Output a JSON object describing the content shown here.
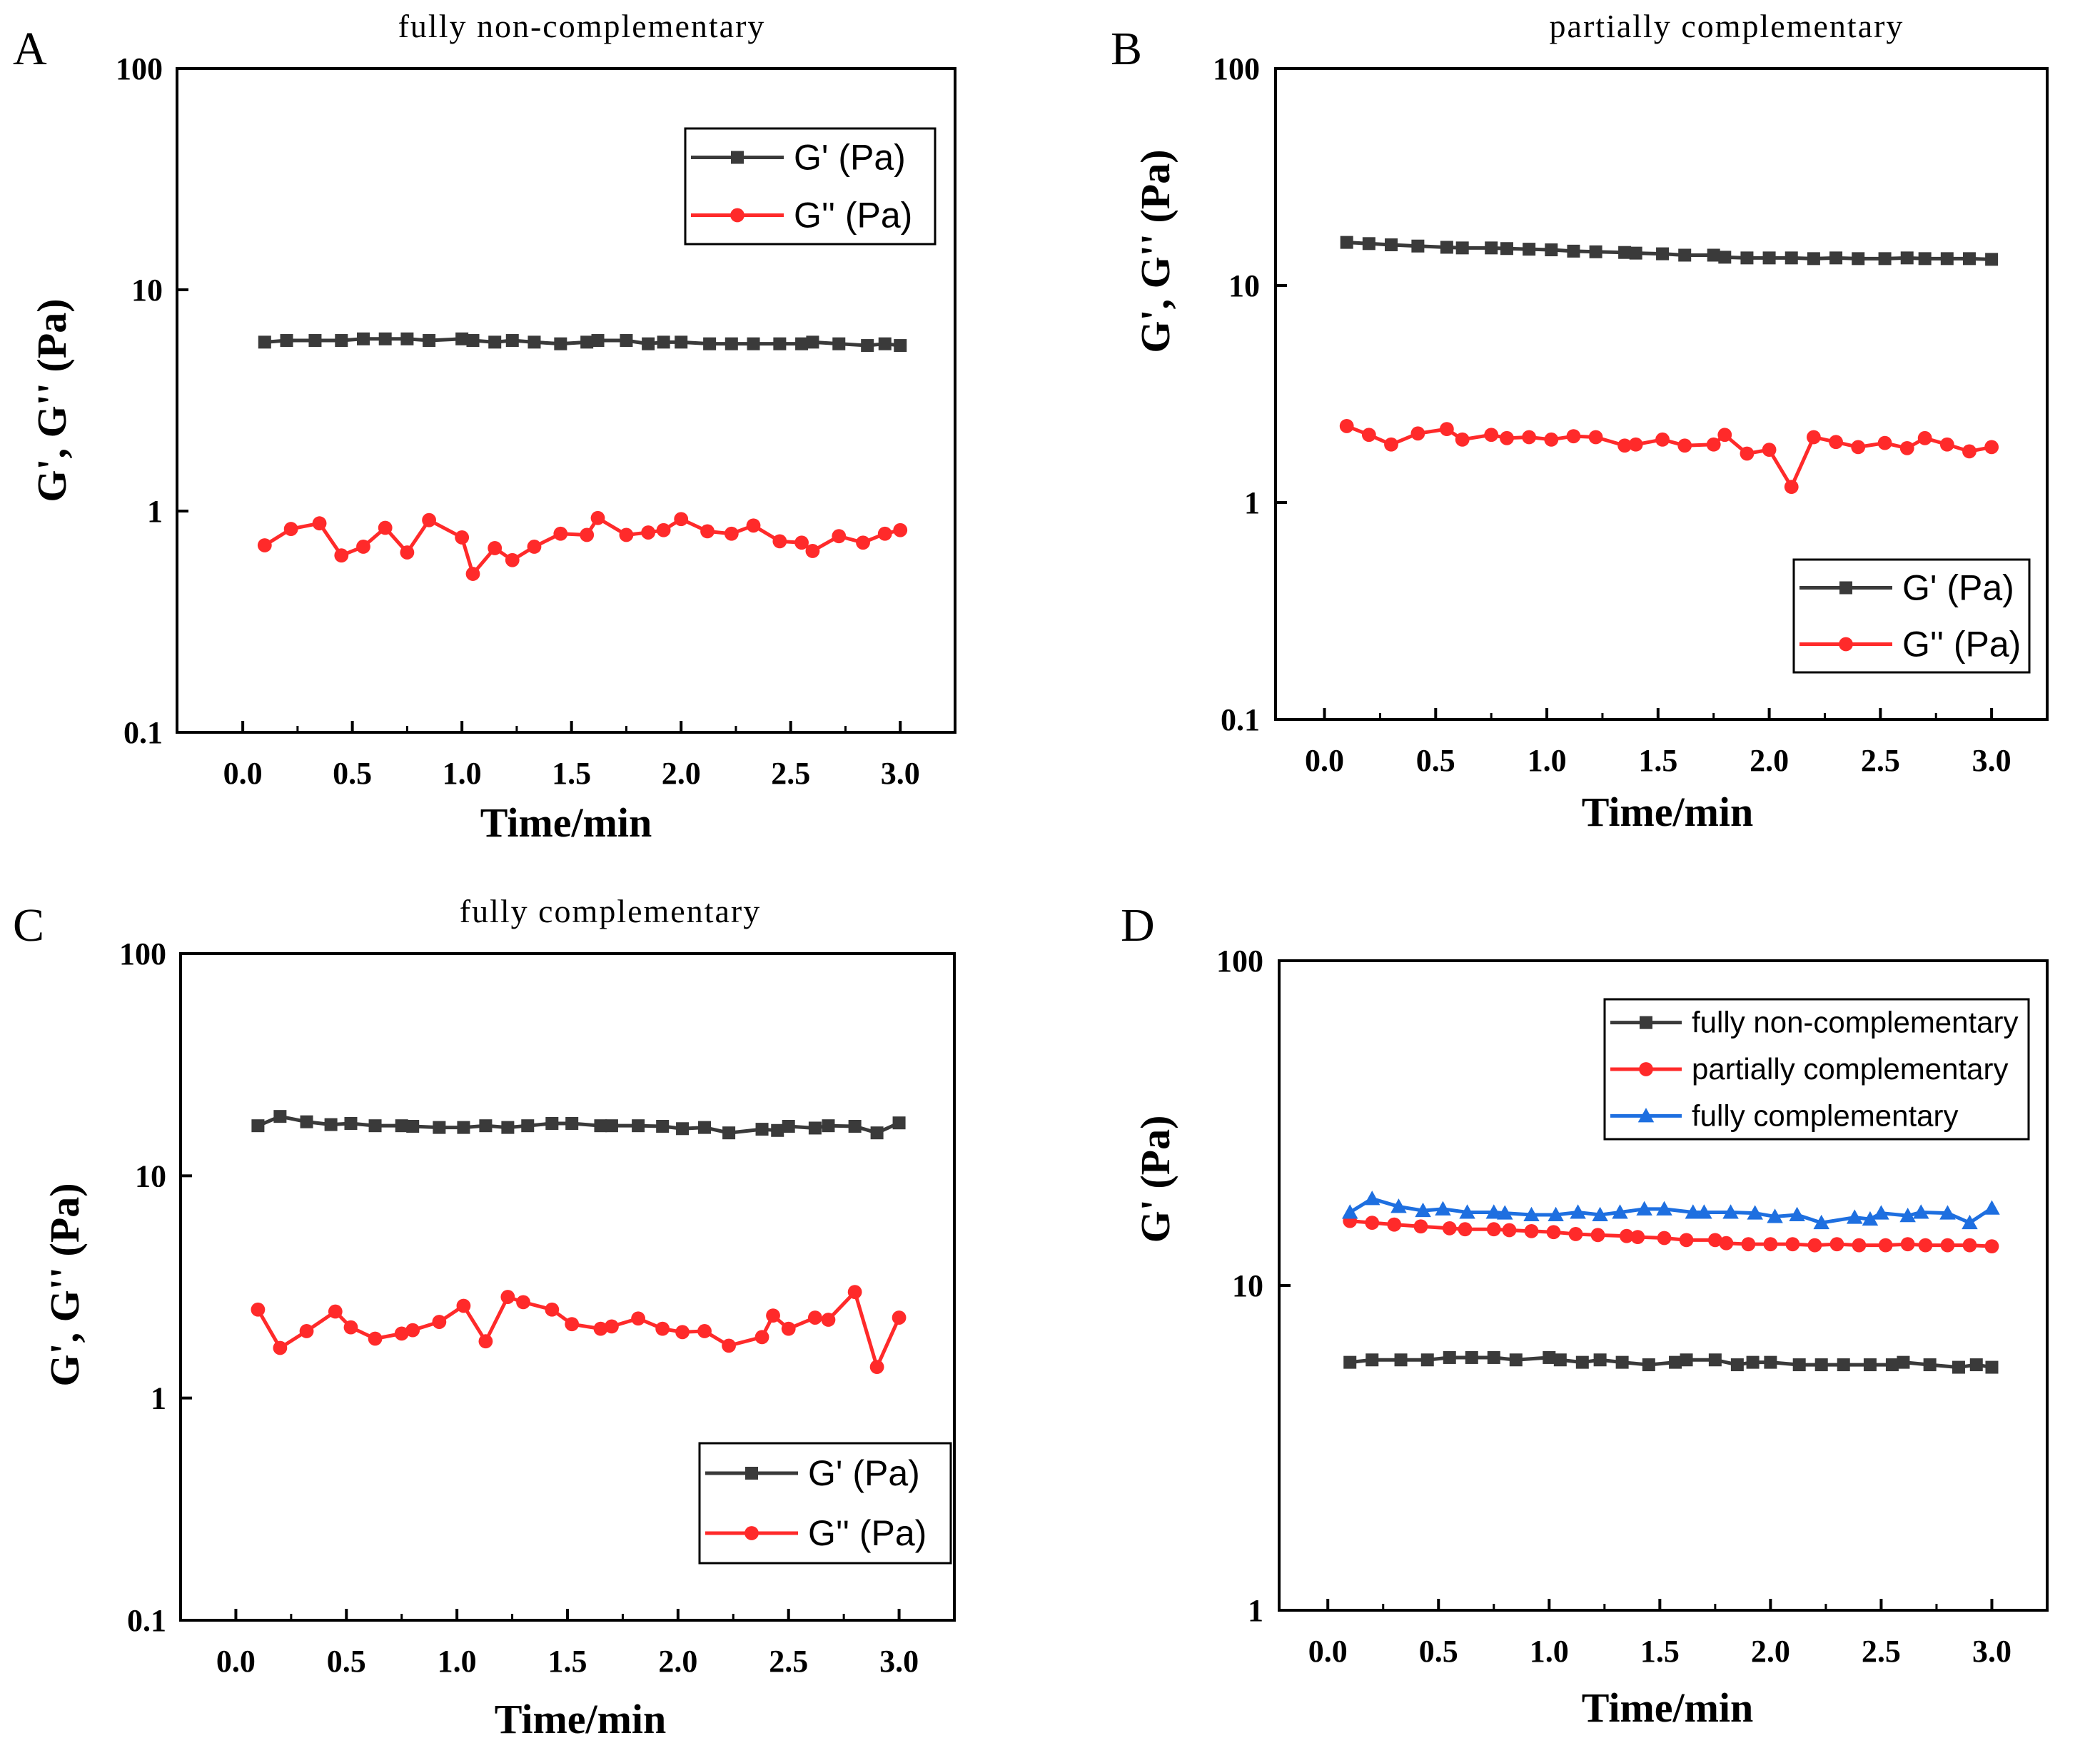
{
  "colors": {
    "g_prime": "#3a3a3a",
    "g_double": "#ff2a2a",
    "blue": "#1e6fe0",
    "axis": "#000000"
  },
  "chart_data": [
    {
      "type": "line",
      "panel": "A",
      "title": "fully non-complementary",
      "xlabel": "Time/min",
      "ylabel": "G', G'' (Pa)",
      "xlim": [
        -0.3,
        3.25
      ],
      "ylim": [
        0.1,
        100
      ],
      "yscale": "log",
      "xticks": [
        "0.0",
        "0.5",
        "1.0",
        "1.5",
        "2.0",
        "2.5",
        "3.0"
      ],
      "xtick_values": [
        0,
        0.5,
        1,
        1.5,
        2,
        2.5,
        3
      ],
      "yticks": [
        "0.1",
        "1",
        "10",
        "100"
      ],
      "ytick_values": [
        0.1,
        1,
        10,
        100
      ],
      "legend_position": "top-right",
      "series": [
        {
          "name": "G' (Pa)",
          "marker": "square",
          "color": "#3a3a3a",
          "x": [
            0.1,
            0.2,
            0.33,
            0.45,
            0.55,
            0.65,
            0.75,
            0.85,
            1.0,
            1.05,
            1.15,
            1.23,
            1.33,
            1.45,
            1.57,
            1.62,
            1.75,
            1.85,
            1.92,
            2.0,
            2.13,
            2.23,
            2.33,
            2.45,
            2.55,
            2.6,
            2.72,
            2.85,
            2.93,
            3.0
          ],
          "values": [
            5.8,
            5.9,
            5.9,
            5.9,
            6.0,
            6.0,
            6.0,
            5.9,
            6.0,
            5.9,
            5.8,
            5.9,
            5.8,
            5.7,
            5.8,
            5.9,
            5.9,
            5.7,
            5.8,
            5.8,
            5.7,
            5.7,
            5.7,
            5.7,
            5.7,
            5.8,
            5.7,
            5.6,
            5.7,
            5.6
          ]
        },
        {
          "name": "G'' (Pa)",
          "marker": "circle",
          "color": "#ff2a2a",
          "x": [
            0.1,
            0.22,
            0.35,
            0.45,
            0.55,
            0.65,
            0.75,
            0.85,
            1.0,
            1.05,
            1.15,
            1.23,
            1.33,
            1.45,
            1.57,
            1.62,
            1.75,
            1.85,
            1.92,
            2.0,
            2.12,
            2.23,
            2.33,
            2.45,
            2.55,
            2.6,
            2.72,
            2.83,
            2.93,
            3.0
          ],
          "values": [
            0.7,
            0.83,
            0.88,
            0.63,
            0.69,
            0.84,
            0.65,
            0.91,
            0.76,
            0.52,
            0.68,
            0.6,
            0.69,
            0.79,
            0.78,
            0.93,
            0.78,
            0.8,
            0.82,
            0.92,
            0.81,
            0.79,
            0.86,
            0.73,
            0.72,
            0.66,
            0.77,
            0.72,
            0.79,
            0.82
          ]
        }
      ]
    },
    {
      "type": "line",
      "panel": "B",
      "title": "partially complementary",
      "xlabel": "Time/min",
      "ylabel": "G', G'' (Pa)",
      "xlim": [
        -0.22,
        3.25
      ],
      "ylim": [
        0.1,
        100
      ],
      "yscale": "log",
      "xticks": [
        "0.0",
        "0.5",
        "1.0",
        "1.5",
        "2.0",
        "2.5",
        "3.0"
      ],
      "xtick_values": [
        0,
        0.5,
        1,
        1.5,
        2,
        2.5,
        3
      ],
      "yticks": [
        "0.1",
        "1",
        "10",
        "100"
      ],
      "ytick_values": [
        0.1,
        1,
        10,
        100
      ],
      "legend_position": "bottom-right",
      "series": [
        {
          "name": "G' (Pa)",
          "marker": "square",
          "color": "#3a3a3a",
          "x": [
            0.1,
            0.2,
            0.3,
            0.42,
            0.55,
            0.62,
            0.75,
            0.82,
            0.92,
            1.02,
            1.12,
            1.22,
            1.35,
            1.4,
            1.52,
            1.62,
            1.75,
            1.8,
            1.9,
            2.0,
            2.1,
            2.2,
            2.3,
            2.4,
            2.52,
            2.62,
            2.7,
            2.8,
            2.9,
            3.0
          ],
          "values": [
            15.8,
            15.6,
            15.4,
            15.2,
            15.0,
            14.9,
            14.9,
            14.8,
            14.7,
            14.6,
            14.4,
            14.3,
            14.2,
            14.1,
            14.0,
            13.8,
            13.8,
            13.5,
            13.4,
            13.4,
            13.4,
            13.3,
            13.4,
            13.3,
            13.3,
            13.4,
            13.3,
            13.3,
            13.3,
            13.2
          ]
        },
        {
          "name": "G'' (Pa)",
          "marker": "circle",
          "color": "#ff2a2a",
          "x": [
            0.1,
            0.2,
            0.3,
            0.42,
            0.55,
            0.62,
            0.75,
            0.82,
            0.92,
            1.02,
            1.12,
            1.22,
            1.35,
            1.4,
            1.52,
            1.62,
            1.75,
            1.8,
            1.9,
            2.0,
            2.1,
            2.2,
            2.3,
            2.4,
            2.52,
            2.62,
            2.7,
            2.8,
            2.9,
            3.0
          ],
          "values": [
            2.25,
            2.05,
            1.85,
            2.08,
            2.18,
            1.95,
            2.05,
            1.98,
            2.0,
            1.95,
            2.02,
            2.0,
            1.83,
            1.85,
            1.95,
            1.83,
            1.85,
            2.05,
            1.68,
            1.75,
            1.18,
            2.0,
            1.9,
            1.8,
            1.88,
            1.78,
            1.98,
            1.85,
            1.72,
            1.8
          ]
        }
      ]
    },
    {
      "type": "line",
      "panel": "C",
      "title": "fully complementary",
      "xlabel": "Time/min",
      "ylabel": "G', G'' (Pa)",
      "xlim": [
        -0.25,
        3.25
      ],
      "ylim": [
        0.1,
        100
      ],
      "yscale": "log",
      "xticks": [
        "0.0",
        "0.5",
        "1.0",
        "1.5",
        "2.0",
        "2.5",
        "3.0"
      ],
      "xtick_values": [
        0,
        0.5,
        1,
        1.5,
        2,
        2.5,
        3
      ],
      "yticks": [
        "0.1",
        "1",
        "10",
        "100"
      ],
      "ytick_values": [
        0.1,
        1,
        10,
        100
      ],
      "legend_position": "bottom-right",
      "series": [
        {
          "name": "G' (Pa)",
          "marker": "square",
          "color": "#3a3a3a",
          "x": [
            0.1,
            0.2,
            0.32,
            0.43,
            0.52,
            0.63,
            0.75,
            0.8,
            0.92,
            1.03,
            1.13,
            1.23,
            1.32,
            1.43,
            1.52,
            1.65,
            1.7,
            1.82,
            1.93,
            2.02,
            2.12,
            2.23,
            2.38,
            2.45,
            2.5,
            2.62,
            2.68,
            2.8,
            2.9,
            3.0
          ],
          "values": [
            16.8,
            18.5,
            17.5,
            17.0,
            17.2,
            16.8,
            16.8,
            16.7,
            16.5,
            16.5,
            16.8,
            16.5,
            16.8,
            17.2,
            17.2,
            16.8,
            16.8,
            16.8,
            16.7,
            16.3,
            16.5,
            15.6,
            16.2,
            16.0,
            16.7,
            16.4,
            16.8,
            16.7,
            15.6,
            17.3
          ]
        },
        {
          "name": "G'' (Pa)",
          "marker": "circle",
          "color": "#ff2a2a",
          "x": [
            0.1,
            0.2,
            0.32,
            0.45,
            0.52,
            0.63,
            0.75,
            0.8,
            0.92,
            1.03,
            1.13,
            1.23,
            1.3,
            1.43,
            1.52,
            1.65,
            1.7,
            1.82,
            1.93,
            2.02,
            2.12,
            2.23,
            2.38,
            2.43,
            2.5,
            2.62,
            2.68,
            2.8,
            2.9,
            3.0
          ],
          "values": [
            2.5,
            1.68,
            2.0,
            2.45,
            2.08,
            1.85,
            1.95,
            2.02,
            2.2,
            2.6,
            1.8,
            2.85,
            2.7,
            2.5,
            2.15,
            2.05,
            2.1,
            2.28,
            2.05,
            1.98,
            2.0,
            1.72,
            1.88,
            2.35,
            2.05,
            2.3,
            2.25,
            3.0,
            1.38,
            2.3
          ]
        }
      ]
    },
    {
      "type": "line",
      "panel": "D",
      "title": "",
      "xlabel": "Time/min",
      "ylabel": "G' (Pa)",
      "xlim": [
        -0.22,
        3.25
      ],
      "ylim": [
        1,
        100
      ],
      "yscale": "log",
      "xticks": [
        "0.0",
        "0.5",
        "1.0",
        "1.5",
        "2.0",
        "2.5",
        "3.0"
      ],
      "xtick_values": [
        0,
        0.5,
        1,
        1.5,
        2,
        2.5,
        3
      ],
      "yticks": [
        "1",
        "10",
        "100"
      ],
      "ytick_values": [
        1,
        10,
        100
      ],
      "legend_position": "top-right",
      "series": [
        {
          "name": "fully non-complementary",
          "marker": "square",
          "color": "#3a3a3a",
          "x": [
            0.1,
            0.2,
            0.33,
            0.45,
            0.55,
            0.65,
            0.75,
            0.85,
            1.0,
            1.05,
            1.15,
            1.23,
            1.33,
            1.45,
            1.57,
            1.62,
            1.75,
            1.85,
            1.92,
            2.0,
            2.13,
            2.23,
            2.33,
            2.45,
            2.55,
            2.6,
            2.72,
            2.85,
            2.93,
            3.0
          ],
          "values": [
            5.8,
            5.9,
            5.9,
            5.9,
            6.0,
            6.0,
            6.0,
            5.9,
            6.0,
            5.9,
            5.8,
            5.9,
            5.8,
            5.7,
            5.8,
            5.9,
            5.9,
            5.7,
            5.8,
            5.8,
            5.7,
            5.7,
            5.7,
            5.7,
            5.7,
            5.8,
            5.7,
            5.6,
            5.7,
            5.6
          ]
        },
        {
          "name": "partially complementary",
          "marker": "circle",
          "color": "#ff2a2a",
          "x": [
            0.1,
            0.2,
            0.3,
            0.42,
            0.55,
            0.62,
            0.75,
            0.82,
            0.92,
            1.02,
            1.12,
            1.22,
            1.35,
            1.4,
            1.52,
            1.62,
            1.75,
            1.8,
            1.9,
            2.0,
            2.1,
            2.2,
            2.3,
            2.4,
            2.52,
            2.62,
            2.7,
            2.8,
            2.9,
            3.0
          ],
          "values": [
            15.8,
            15.6,
            15.4,
            15.2,
            15.0,
            14.9,
            14.9,
            14.8,
            14.7,
            14.6,
            14.4,
            14.3,
            14.2,
            14.1,
            14.0,
            13.8,
            13.8,
            13.5,
            13.4,
            13.4,
            13.4,
            13.3,
            13.4,
            13.3,
            13.3,
            13.4,
            13.3,
            13.3,
            13.3,
            13.2
          ]
        },
        {
          "name": "fully complementary",
          "marker": "triangle",
          "color": "#1e6fe0",
          "x": [
            0.1,
            0.2,
            0.32,
            0.43,
            0.52,
            0.63,
            0.75,
            0.8,
            0.92,
            1.03,
            1.13,
            1.23,
            1.32,
            1.43,
            1.52,
            1.65,
            1.7,
            1.82,
            1.93,
            2.02,
            2.12,
            2.23,
            2.38,
            2.45,
            2.5,
            2.62,
            2.68,
            2.8,
            2.9,
            3.0
          ],
          "values": [
            16.8,
            18.5,
            17.5,
            17.0,
            17.2,
            16.8,
            16.8,
            16.7,
            16.5,
            16.5,
            16.8,
            16.5,
            16.8,
            17.2,
            17.2,
            16.8,
            16.8,
            16.8,
            16.7,
            16.3,
            16.5,
            15.6,
            16.2,
            16.0,
            16.7,
            16.4,
            16.8,
            16.7,
            15.6,
            17.3
          ]
        }
      ]
    }
  ]
}
